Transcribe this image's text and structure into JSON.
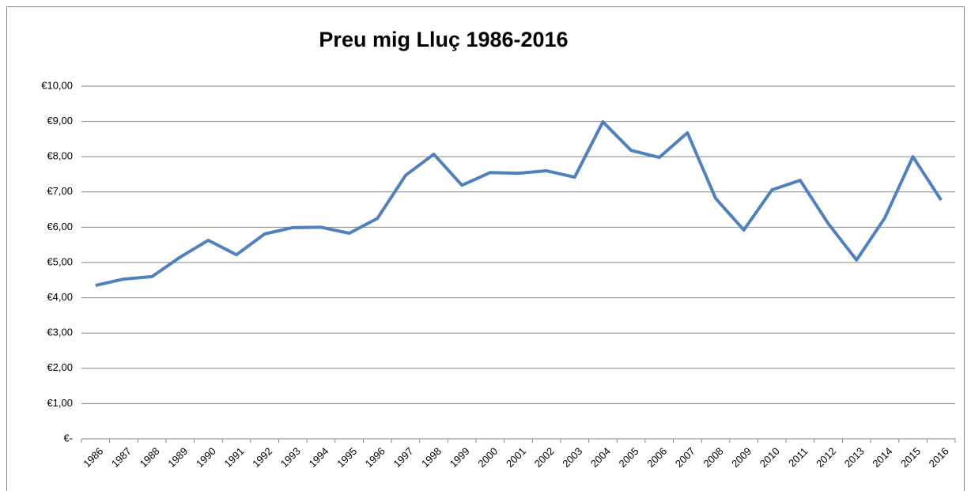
{
  "chart_data": {
    "type": "line",
    "title": "Preu mig Lluç 1986-2016",
    "categories": [
      "1986",
      "1987",
      "1988",
      "1989",
      "1990",
      "1991",
      "1992",
      "1993",
      "1994",
      "1995",
      "1996",
      "1997",
      "1998",
      "1999",
      "2000",
      "2001",
      "2002",
      "2003",
      "2004",
      "2005",
      "2006",
      "2007",
      "2008",
      "2009",
      "2010",
      "2011",
      "2012",
      "2013",
      "2014",
      "2015",
      "2016"
    ],
    "series": [
      {
        "name": "Preu mig",
        "color": "#4f81bd",
        "values": [
          4.35,
          4.53,
          4.6,
          5.15,
          5.63,
          5.22,
          5.81,
          5.99,
          6.0,
          5.83,
          6.25,
          7.47,
          8.07,
          7.19,
          7.55,
          7.53,
          7.6,
          7.42,
          8.99,
          8.18,
          7.98,
          8.68,
          6.82,
          5.92,
          7.06,
          7.33,
          6.1,
          5.07,
          6.26,
          8.0,
          6.77
        ]
      }
    ],
    "ylim": [
      0,
      10
    ],
    "yticks": [
      {
        "value": 0,
        "label": "€-"
      },
      {
        "value": 1,
        "label": "€1,00"
      },
      {
        "value": 2,
        "label": "€2,00"
      },
      {
        "value": 3,
        "label": "€3,00"
      },
      {
        "value": 4,
        "label": "€4,00"
      },
      {
        "value": 5,
        "label": "€5,00"
      },
      {
        "value": 6,
        "label": "€6,00"
      },
      {
        "value": 7,
        "label": "€7,00"
      },
      {
        "value": 8,
        "label": "€8,00"
      },
      {
        "value": 9,
        "label": "€9,00"
      },
      {
        "value": 10,
        "label": "€10,00"
      }
    ],
    "grid": true
  }
}
